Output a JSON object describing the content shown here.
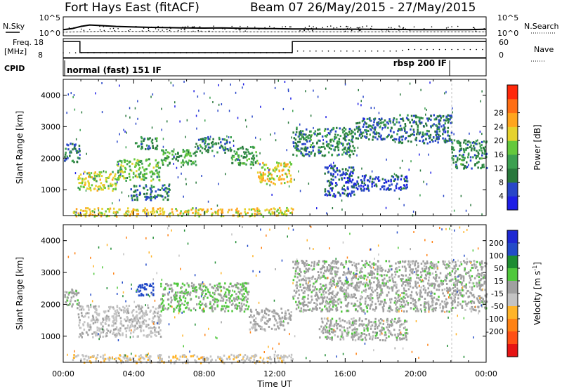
{
  "header": {
    "radar": "Fort Hays East (fitACF)",
    "beam_date": "Beam 07  26/May/2015 - 27/May/2015"
  },
  "noise_panel": {
    "left_label": "N.Sky",
    "right_label": "N.Search",
    "left_ticks": [
      "10^5",
      "10^0"
    ],
    "right_ticks": [
      "10^5",
      "10^0"
    ]
  },
  "freq_panel": {
    "left_label_1": "Freq.",
    "left_label_2": "[MHz]",
    "left_ticks": [
      "18",
      "8"
    ],
    "right_label": "Nave",
    "right_ticks": [
      "60",
      "0"
    ]
  },
  "cpid_panel": {
    "label": "CPID",
    "mode_1": "normal (fast) 151 IF",
    "mode_2": "rbsp 200 IF"
  },
  "colors": {
    "power_scale": [
      "#1e1ee6",
      "#2846c8",
      "#28783c",
      "#3ca050",
      "#64c83c",
      "#e6d22d",
      "#ffa51e",
      "#ff6e14",
      "#ff280a"
    ],
    "velocity_scale": [
      "#1e28d2",
      "#234bc8",
      "#1e8c32",
      "#50c83c",
      "#a0a0a0",
      "#c3c3c3",
      "#ffb428",
      "#ff8214",
      "#ff5014",
      "#e61414"
    ]
  },
  "chart_data": [
    {
      "type": "line",
      "title": "",
      "xlabel": "",
      "ylabel": "N.Sky",
      "y2label": "N.Search",
      "x_unit": "hours UT from 26/May/2015 00:00",
      "xlim": [
        0,
        24
      ],
      "yscale": "log",
      "ylim": [
        1,
        100000
      ],
      "series": [
        {
          "name": "N.Sky",
          "x": [
            0,
            0.5,
            1,
            1.5,
            2,
            3,
            4,
            5,
            6,
            7,
            8,
            9,
            10,
            11,
            12,
            13,
            14,
            15,
            16,
            17,
            18,
            19,
            20,
            21,
            22,
            23,
            24
          ],
          "values": [
            30,
            60,
            300,
            800,
            600,
            300,
            200,
            150,
            120,
            100,
            90,
            100,
            80,
            70,
            60,
            50,
            50,
            40,
            40,
            40,
            35,
            35,
            30,
            30,
            30,
            30,
            40
          ]
        },
        {
          "name": "N.Search",
          "x": [
            0,
            2,
            4,
            6,
            8,
            10,
            12,
            14,
            16,
            18,
            20,
            22,
            24
          ],
          "values": [
            5,
            8,
            8,
            7,
            7,
            6,
            6,
            6,
            6,
            6,
            6,
            6,
            6
          ]
        }
      ]
    },
    {
      "type": "line",
      "title": "",
      "xlabel": "",
      "ylabel": "Freq. [MHz]",
      "y2label": "Nave",
      "x_unit": "hours UT from 26/May/2015 00:00",
      "xlim": [
        0,
        24
      ],
      "ylim": [
        8,
        18
      ],
      "y2lim": [
        0,
        60
      ],
      "series": [
        {
          "name": "Freq.",
          "x": [
            0,
            0.95,
            0.95,
            13.0,
            13.0,
            24
          ],
          "values": [
            17.5,
            17.5,
            10.3,
            10.3,
            17.5,
            17.5
          ]
        },
        {
          "name": "Nave",
          "x": [
            0,
            13,
            13,
            19,
            19.5,
            24
          ],
          "values": [
            13,
            13,
            20,
            20,
            26,
            26
          ]
        }
      ]
    },
    {
      "type": "heatmap",
      "title": "",
      "xlabel": "",
      "ylabel": "Slant Range [km]",
      "colorbar_label": "Power [dB]",
      "x_unit": "hours UT from 26/May/2015 00:00",
      "xlim": [
        0,
        24
      ],
      "ylim": [
        180,
        4500
      ],
      "yticks": [
        1000,
        2000,
        3000,
        4000
      ],
      "colorbar_ticks": [
        4,
        8,
        12,
        16,
        20,
        24,
        28
      ],
      "colorbar_range": [
        0,
        32
      ],
      "regions": [
        {
          "x": [
            0.0,
            0.9
          ],
          "range": [
            1900,
            2500
          ],
          "value": 8
        },
        {
          "x": [
            0.8,
            3.0
          ],
          "range": [
            1000,
            1600
          ],
          "value": 18
        },
        {
          "x": [
            3.0,
            5.5
          ],
          "range": [
            1300,
            2000
          ],
          "value": 15
        },
        {
          "x": [
            5.5,
            7.5
          ],
          "range": [
            1800,
            2300
          ],
          "value": 12
        },
        {
          "x": [
            7.5,
            9.5
          ],
          "range": [
            2200,
            2700
          ],
          "value": 10
        },
        {
          "x": [
            9.5,
            11.0
          ],
          "range": [
            1800,
            2400
          ],
          "value": 12
        },
        {
          "x": [
            11.0,
            12.9
          ],
          "range": [
            1200,
            1900
          ],
          "value": 20
        },
        {
          "x": [
            3.8,
            6.0
          ],
          "range": [
            700,
            1200
          ],
          "value": 8
        },
        {
          "x": [
            0.5,
            13.0
          ],
          "range": [
            180,
            450
          ],
          "value": 20
        },
        {
          "x": [
            4.0,
            5.3
          ],
          "range": [
            2300,
            2700
          ],
          "value": 10
        },
        {
          "x": [
            13.0,
            16.5
          ],
          "range": [
            2100,
            3000
          ],
          "value": 10
        },
        {
          "x": [
            16.5,
            19.0
          ],
          "range": [
            2600,
            3300
          ],
          "value": 8
        },
        {
          "x": [
            19.0,
            22.0
          ],
          "range": [
            2500,
            3400
          ],
          "value": 8
        },
        {
          "x": [
            22.0,
            24.0
          ],
          "range": [
            1700,
            2600
          ],
          "value": 10
        },
        {
          "x": [
            14.8,
            16.5
          ],
          "range": [
            800,
            1800
          ],
          "value": 6
        },
        {
          "x": [
            16.5,
            19.5
          ],
          "range": [
            1000,
            1500
          ],
          "value": 5
        }
      ]
    },
    {
      "type": "heatmap",
      "title": "",
      "xlabel": "Time UT",
      "ylabel": "Slant Range [km]",
      "colorbar_label": "Velocity [m s^-1]",
      "x_unit": "hours UT from 26/May/2015 00:00",
      "xlim": [
        0,
        24
      ],
      "ylim": [
        180,
        4500
      ],
      "yticks": [
        1000,
        2000,
        3000,
        4000
      ],
      "xticks": [
        "00:00",
        "04:00",
        "08:00",
        "12:00",
        "16:00",
        "20:00",
        "00:00"
      ],
      "colorbar_ticks": [
        200,
        100,
        50,
        15,
        -15,
        -50,
        -100,
        -200
      ],
      "regions": [
        {
          "x": [
            0.0,
            0.9
          ],
          "range": [
            1900,
            2500
          ],
          "value": 0
        },
        {
          "x": [
            0.8,
            5.5
          ],
          "range": [
            1000,
            2000
          ],
          "value": -25
        },
        {
          "x": [
            5.5,
            10.5
          ],
          "range": [
            1800,
            2700
          ],
          "value": 15
        },
        {
          "x": [
            10.5,
            12.9
          ],
          "range": [
            1200,
            1900
          ],
          "value": -10
        },
        {
          "x": [
            0.5,
            13.0
          ],
          "range": [
            180,
            450
          ],
          "value": -40
        },
        {
          "x": [
            4.1,
            5.1
          ],
          "range": [
            2300,
            2700
          ],
          "value": 180
        },
        {
          "x": [
            13.0,
            24.0
          ],
          "range": [
            1800,
            3400
          ],
          "value": 0
        },
        {
          "x": [
            14.5,
            19.5
          ],
          "range": [
            900,
            1600
          ],
          "value": 0
        }
      ]
    }
  ],
  "x_axis": {
    "ticks": [
      "00:00",
      "04:00",
      "08:00",
      "12:00",
      "16:00",
      "20:00",
      "00:00"
    ],
    "label": "Time UT"
  },
  "power_panel": {
    "ylabel": "Slant Range [km]",
    "yticks": [
      "1000",
      "2000",
      "3000",
      "4000"
    ],
    "colorbar_label": "Power [dB]",
    "colorbar_ticks": [
      "4",
      "8",
      "12",
      "16",
      "20",
      "24",
      "28"
    ]
  },
  "velocity_panel": {
    "ylabel": "Slant Range [km]",
    "yticks": [
      "1000",
      "2000",
      "3000",
      "4000"
    ],
    "colorbar_label_main": "Velocity [m s",
    "colorbar_label_sup": "-1",
    "colorbar_label_end": "]",
    "colorbar_ticks": [
      "200",
      "100",
      "50",
      "15",
      "-15",
      "-50",
      "-100",
      "-200"
    ]
  }
}
